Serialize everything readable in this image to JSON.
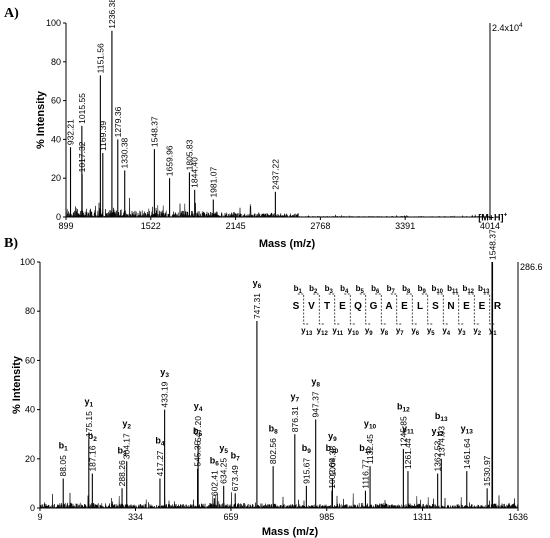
{
  "chart_data": [
    {
      "type": "line",
      "panel_label": "A)",
      "xlabel": "Mass (m/z)",
      "ylabel": "% Intensity",
      "xlim": [
        899,
        4014
      ],
      "ylim": [
        0,
        100
      ],
      "x_ticks": [
        899,
        1522,
        2145,
        2768,
        3391,
        4014
      ],
      "y_ticks": [
        0,
        20,
        40,
        60,
        80,
        100
      ],
      "max_intensity_label": "2.4x10",
      "max_intensity_exp": "4",
      "peaks": [
        {
          "mz": 932.21,
          "label": "932.21",
          "intensity": 36
        },
        {
          "mz": 1015.55,
          "label": "1015.55",
          "intensity": 47
        },
        {
          "mz": 1017.32,
          "label": "1017.32",
          "intensity": 22
        },
        {
          "mz": 1151.56,
          "label": "1151.56",
          "intensity": 73
        },
        {
          "mz": 1169.39,
          "label": "1169.39",
          "intensity": 33
        },
        {
          "mz": 1236.38,
          "label": "1236.38",
          "intensity": 96
        },
        {
          "mz": 1279.36,
          "label": "1279.36",
          "intensity": 40
        },
        {
          "mz": 1330.38,
          "label": "1330.38",
          "intensity": 24
        },
        {
          "mz": 1548.37,
          "label": "1548.37",
          "intensity": 35
        },
        {
          "mz": 1659.96,
          "label": "1659.96",
          "intensity": 20
        },
        {
          "mz": 1805.83,
          "label": "1805.83",
          "intensity": 23
        },
        {
          "mz": 1844.4,
          "label": "1844.40",
          "intensity": 14
        },
        {
          "mz": 1981.07,
          "label": "1981.07",
          "intensity": 9
        },
        {
          "mz": 2437.22,
          "label": "2437.22",
          "intensity": 13
        }
      ]
    },
    {
      "type": "line",
      "panel_label": "B)",
      "xlabel": "Mass (m/z)",
      "ylabel": "% Intensity",
      "xlim": [
        9,
        1636
      ],
      "ylim": [
        0,
        100
      ],
      "x_ticks": [
        9,
        334,
        659,
        985,
        1311,
        1636
      ],
      "y_ticks": [
        0,
        20,
        40,
        60,
        80,
        100
      ],
      "max_intensity_label": "286.6",
      "parent_ion_label": "[M+H]",
      "parent_ion_sup": "+",
      "peaks": [
        {
          "mz": 88.05,
          "label": "88.05",
          "intensity": 12,
          "ion": "b",
          "ion_sub": "1"
        },
        {
          "mz": 175.15,
          "label": "175.15",
          "intensity": 28,
          "ion": "y",
          "ion_sub": "1"
        },
        {
          "mz": 187.16,
          "label": "187.16",
          "intensity": 14,
          "ion": "b",
          "ion_sub": "2"
        },
        {
          "mz": 288.26,
          "label": "288.26",
          "intensity": 8,
          "ion": "b",
          "ion_sub": "3"
        },
        {
          "mz": 304.17,
          "label": "304.17",
          "intensity": 19,
          "ion": "y",
          "ion_sub": "2"
        },
        {
          "mz": 417.27,
          "label": "417.27",
          "intensity": 12,
          "ion": "b",
          "ion_sub": "4"
        },
        {
          "mz": 433.19,
          "label": "433.19",
          "intensity": 40,
          "ion": "y",
          "ion_sub": "3"
        },
        {
          "mz": 545.35,
          "label": "545.35",
          "intensity": 16,
          "ion": "b",
          "ion_sub": "5"
        },
        {
          "mz": 547.2,
          "label": "547.20",
          "intensity": 26,
          "ion": "y",
          "ion_sub": "4"
        },
        {
          "mz": 602.41,
          "label": "602.41",
          "intensity": 4,
          "ion": "b",
          "ion_sub": "6"
        },
        {
          "mz": 634.25,
          "label": "634.25",
          "intensity": 9,
          "ion": "y",
          "ion_sub": "5"
        },
        {
          "mz": 673.49,
          "label": "673.49",
          "intensity": 6,
          "ion": "b",
          "ion_sub": "7"
        },
        {
          "mz": 747.31,
          "label": "747.31",
          "intensity": 76,
          "ion": "y",
          "ion_sub": "6"
        },
        {
          "mz": 802.56,
          "label": "802.56",
          "intensity": 17,
          "ion": "b",
          "ion_sub": "8"
        },
        {
          "mz": 876.31,
          "label": "876.31",
          "intensity": 30,
          "ion": "y",
          "ion_sub": "7"
        },
        {
          "mz": 915.67,
          "label": "915.67",
          "intensity": 9,
          "ion": "b",
          "ion_sub": "9"
        },
        {
          "mz": 947.37,
          "label": "947.37",
          "intensity": 36,
          "ion": "y",
          "ion_sub": "8"
        },
        {
          "mz": 1002.69,
          "label": "1002.69",
          "intensity": 7,
          "ion": "b",
          "ion_sub": "10"
        },
        {
          "mz": 1004.38,
          "label": "1004.38",
          "intensity": 12,
          "ion": "y",
          "ion_sub": "9"
        },
        {
          "mz": 1116.77,
          "label": "1116.77",
          "intensity": 7,
          "ion": "b",
          "ion_sub": "11"
        },
        {
          "mz": 1132.45,
          "label": "1132.45",
          "intensity": 17,
          "ion": "y",
          "ion_sub": "10"
        },
        {
          "mz": 1245.85,
          "label": "1245.85",
          "intensity": 24,
          "ion": "b",
          "ion_sub": "12"
        },
        {
          "mz": 1261.44,
          "label": "1261.44",
          "intensity": 15,
          "ion": "y",
          "ion_sub": "11"
        },
        {
          "mz": 1362.53,
          "label": "1362.53",
          "intensity": 14,
          "ion": "y",
          "ion_sub": "12"
        },
        {
          "mz": 1374.93,
          "label": "1374.93",
          "intensity": 20,
          "ion": "b",
          "ion_sub": "13"
        },
        {
          "mz": 1461.64,
          "label": "1461.64",
          "intensity": 15,
          "ion": "y",
          "ion_sub": "13"
        },
        {
          "mz": 1530.97,
          "label": "1530.97",
          "intensity": 8
        },
        {
          "mz": 1548.37,
          "label": "1548.37",
          "intensity": 100,
          "parent": true
        }
      ],
      "sequence": {
        "residues": [
          "S",
          "V",
          "T",
          "E",
          "Q",
          "G",
          "A",
          "E",
          "L",
          "S",
          "N",
          "E",
          "E",
          "R"
        ],
        "b_sub": [
          "1",
          "2",
          "3",
          "4",
          "5",
          "6",
          "7",
          "8",
          "9",
          "10",
          "11",
          "12",
          "13"
        ],
        "y_sub": [
          "13",
          "12",
          "11",
          "10",
          "9",
          "8",
          "7",
          "6",
          "5",
          "4",
          "3",
          "2",
          "1"
        ]
      }
    }
  ]
}
